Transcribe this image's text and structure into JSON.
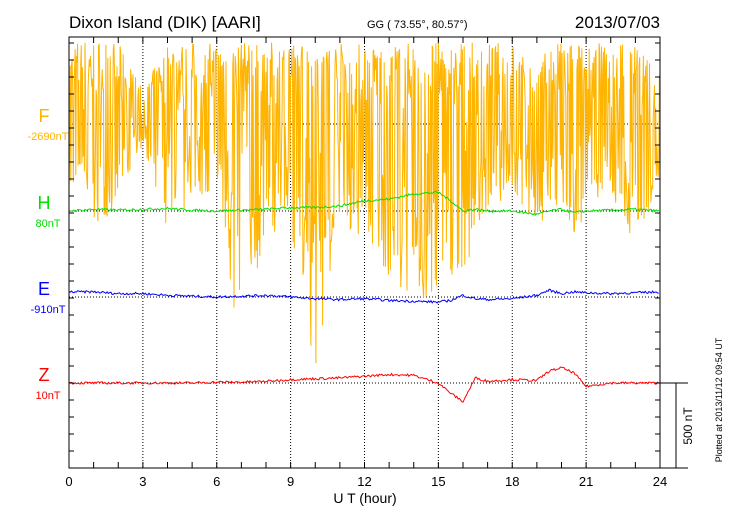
{
  "chart_data": {
    "type": "line",
    "title": "Dixon Island (DIK)  [AARI]",
    "subtitle": "GG ( 73.55°,  80.57°)",
    "date": "2013/07/03",
    "xlabel": "U T (hour)",
    "xlim": [
      0,
      24
    ],
    "xticks": [
      "0",
      "3",
      "6",
      "9",
      "12",
      "15",
      "18",
      "21",
      "24"
    ],
    "scale_label": "500 nT",
    "scale_nT": 500,
    "footer": "Plotted at 2013/11/12 09:54 UT",
    "x_hours": [
      0,
      1,
      2,
      3,
      4,
      5,
      6,
      7,
      8,
      9,
      10,
      11,
      12,
      13,
      14,
      15,
      15.5,
      16,
      16.5,
      17,
      18,
      19,
      19.5,
      20,
      20.5,
      21,
      22,
      23,
      24
    ],
    "series": [
      {
        "name": "F",
        "baseline_label": "-2690nT",
        "color": "#ffb400",
        "envelope_min": [
          -380,
          -620,
          -500,
          -120,
          -650,
          -450,
          -420,
          -1500,
          -650,
          -620,
          -1480,
          -700,
          -650,
          -900,
          -1100,
          -1050,
          -900,
          -950,
          -650,
          -500,
          -420,
          -650,
          -500,
          -480,
          -700,
          -520,
          -400,
          -800,
          -300
        ],
        "envelope_max": [
          500,
          500,
          480,
          200,
          480,
          480,
          480,
          480,
          480,
          480,
          480,
          480,
          480,
          480,
          480,
          480,
          480,
          480,
          480,
          480,
          480,
          300,
          480,
          480,
          480,
          480,
          480,
          480,
          300
        ]
      },
      {
        "name": "H",
        "baseline_label": "80nT",
        "color": "#00e000",
        "values": [
          0,
          10,
          5,
          10,
          15,
          5,
          0,
          5,
          10,
          20,
          20,
          30,
          60,
          70,
          100,
          110,
          60,
          0,
          10,
          0,
          0,
          -20,
          0,
          10,
          -10,
          0,
          5,
          10,
          0
        ]
      },
      {
        "name": "E",
        "baseline_label": "-910nT",
        "color": "#0000ff",
        "values": [
          30,
          30,
          20,
          20,
          10,
          5,
          0,
          5,
          10,
          0,
          -10,
          -15,
          -10,
          -20,
          -25,
          -30,
          -20,
          10,
          -10,
          -15,
          -10,
          10,
          40,
          20,
          30,
          25,
          20,
          25,
          30
        ]
      },
      {
        "name": "Z",
        "baseline_label": "10nT",
        "color": "#ff0000",
        "values": [
          0,
          0,
          0,
          0,
          0,
          0,
          5,
          5,
          10,
          20,
          25,
          30,
          40,
          50,
          45,
          0,
          -60,
          -110,
          30,
          10,
          20,
          15,
          70,
          90,
          60,
          -20,
          0,
          0,
          0
        ]
      }
    ]
  }
}
